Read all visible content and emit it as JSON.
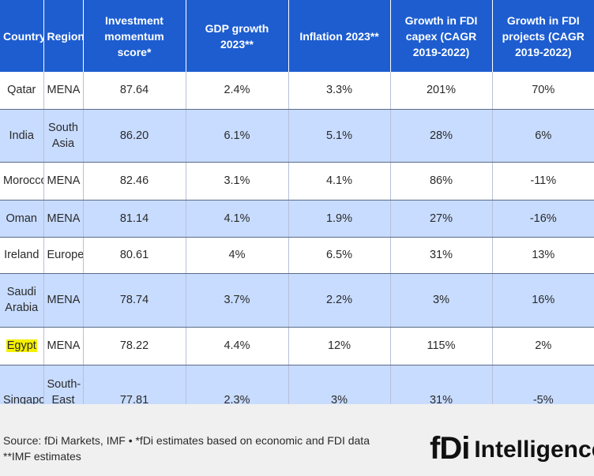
{
  "table": {
    "headers": [
      "Country",
      "Region",
      "Investment momentum score*",
      "GDP growth 2023**",
      "Inflation 2023**",
      "Growth in FDI capex (CAGR 2019-2022)",
      "Growth in FDI projects (CAGR 2019-2022)"
    ],
    "rows": [
      [
        "Qatar",
        "MENA",
        "87.64",
        "2.4%",
        "3.3%",
        "201%",
        "70%"
      ],
      [
        "India",
        "South Asia",
        "86.20",
        "6.1%",
        "5.1%",
        "28%",
        "6%"
      ],
      [
        "Morocco",
        "MENA",
        "82.46",
        "3.1%",
        "4.1%",
        "86%",
        "-11%"
      ],
      [
        "Oman",
        "MENA",
        "81.14",
        "4.1%",
        "1.9%",
        "27%",
        "-16%"
      ],
      [
        "Ireland",
        "Europe",
        "80.61",
        "4%",
        "6.5%",
        "31%",
        "13%"
      ],
      [
        "Saudi Arabia",
        "MENA",
        "78.74",
        "3.7%",
        "2.2%",
        "3%",
        "16%"
      ],
      [
        "Egypt",
        "MENA",
        "78.22",
        "4.4%",
        "12%",
        "115%",
        "2%"
      ],
      [
        "Singapore",
        "South-East Asia",
        "77.81",
        "2.3%",
        "3%",
        "31%",
        "-5%"
      ]
    ],
    "highlight_color": "#f5f000",
    "header_color": "#1d5dd0",
    "stripe_color": "#c8dcff"
  },
  "footer": {
    "source_line1": "Source: fDi Markets, IMF • *fDi estimates based on economic and FDI data",
    "source_line2": "**IMF estimates",
    "logo_mark": "fDi",
    "logo_word": "Intelligence"
  }
}
